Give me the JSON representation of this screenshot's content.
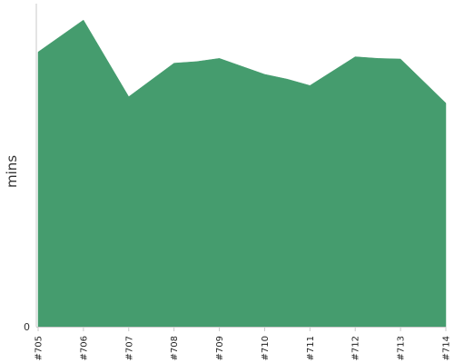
{
  "chart_data": {
    "type": "area",
    "title": "",
    "xlabel": "",
    "ylabel": "mins",
    "categories": [
      "#705",
      "#706",
      "#707",
      "#708",
      "#709",
      "#710",
      "#711",
      "#712",
      "#713",
      "#714"
    ],
    "x": [
      0,
      1,
      2,
      3,
      3.5,
      4,
      5,
      5.5,
      6,
      7,
      7.5,
      8,
      9
    ],
    "values": [
      86,
      96,
      72,
      82.5,
      83,
      84,
      79,
      77.5,
      75.5,
      84.5,
      84,
      83.8,
      70
    ],
    "ylim": [
      0,
      100
    ],
    "yticks": [
      {
        "value": 0,
        "label": "0"
      }
    ],
    "grid": false,
    "colors": {
      "area": "#459c6e",
      "axis": "#c8c8c8"
    }
  }
}
